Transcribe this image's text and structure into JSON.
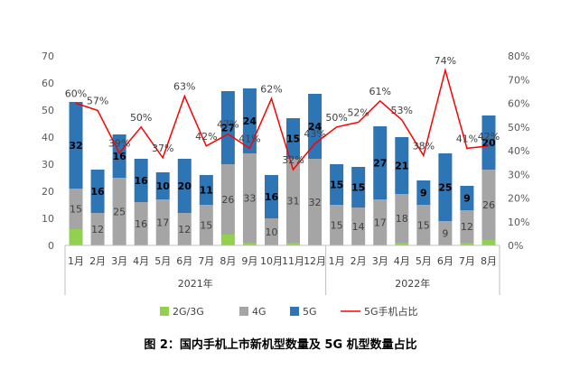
{
  "chart_data": {
    "type": "bar",
    "caption": "图 2：国内手机上市新机型数量及 5G 机型数量占比",
    "categories": [
      "1月",
      "2月",
      "3月",
      "4月",
      "5月",
      "6月",
      "7月",
      "8月",
      "9月",
      "10月",
      "11月",
      "12月",
      "1月",
      "2月",
      "3月",
      "4月",
      "5月",
      "6月",
      "7月",
      "8月"
    ],
    "groups": [
      {
        "label": "2021年",
        "count": 12
      },
      {
        "label": "2022年",
        "count": 8
      }
    ],
    "stack_series": [
      {
        "name": "2G/3G",
        "color": "#92d050",
        "values": [
          6,
          0,
          0,
          0,
          0,
          0,
          0,
          4,
          1,
          0,
          1,
          0,
          0,
          0,
          0,
          1,
          0,
          0,
          1,
          2
        ]
      },
      {
        "name": "4G",
        "color": "#a5a5a5",
        "values": [
          15,
          12,
          25,
          16,
          17,
          12,
          15,
          26,
          33,
          10,
          31,
          32,
          15,
          14,
          17,
          18,
          15,
          9,
          12,
          26
        ]
      },
      {
        "name": "5G",
        "color": "#2e75b6",
        "values": [
          32,
          16,
          16,
          16,
          10,
          20,
          11,
          27,
          24,
          16,
          15,
          24,
          15,
          15,
          27,
          21,
          9,
          25,
          9,
          20
        ]
      }
    ],
    "bar_labels": {
      "4G": [
        "15",
        "12",
        "25",
        "16",
        "17",
        "12",
        "15",
        "26",
        "33",
        "10",
        "31",
        "32",
        "15",
        "14",
        "17",
        "18",
        "15",
        "9",
        "12",
        "26"
      ],
      "5G": [
        "32",
        "16",
        "16",
        "16",
        "10",
        "20",
        "11",
        "27",
        "24",
        "16",
        "15",
        "24",
        "15",
        "15",
        "27",
        "21",
        "9",
        "25",
        "9",
        "20"
      ]
    },
    "line_series": {
      "name": "5G手机占比",
      "color": "#ff0000",
      "values": [
        60,
        57,
        39,
        50,
        37,
        63,
        42,
        47,
        41,
        62,
        32,
        43,
        50,
        52,
        61,
        53,
        38,
        74,
        41,
        42
      ],
      "labels": [
        "60%",
        "57%",
        "39%",
        "50%",
        "37%",
        "63%",
        "42%",
        "47%",
        "41%",
        "62%",
        "32%",
        "43%",
        "50%",
        "52%",
        "61%",
        "53%",
        "38%",
        "74%",
        "41%",
        "42%"
      ]
    },
    "y_left": {
      "min": 0,
      "max": 70,
      "step": 10,
      "ticks": [
        "0",
        "10",
        "20",
        "30",
        "40",
        "50",
        "60",
        "70"
      ]
    },
    "y_right": {
      "min": 0,
      "max": 80,
      "step": 10,
      "ticks": [
        "0%",
        "10%",
        "20%",
        "30%",
        "40%",
        "50%",
        "60%",
        "70%",
        "80%"
      ]
    },
    "legend": {
      "position": "bottom",
      "items": [
        {
          "label": "2G/3G",
          "color": "#92d050",
          "kind": "box"
        },
        {
          "label": "4G",
          "color": "#a5a5a5",
          "kind": "box"
        },
        {
          "label": "5G",
          "color": "#2e75b6",
          "kind": "box"
        },
        {
          "label": "5G手机占比",
          "color": "#ff0000",
          "kind": "line"
        }
      ]
    },
    "grid": false
  }
}
